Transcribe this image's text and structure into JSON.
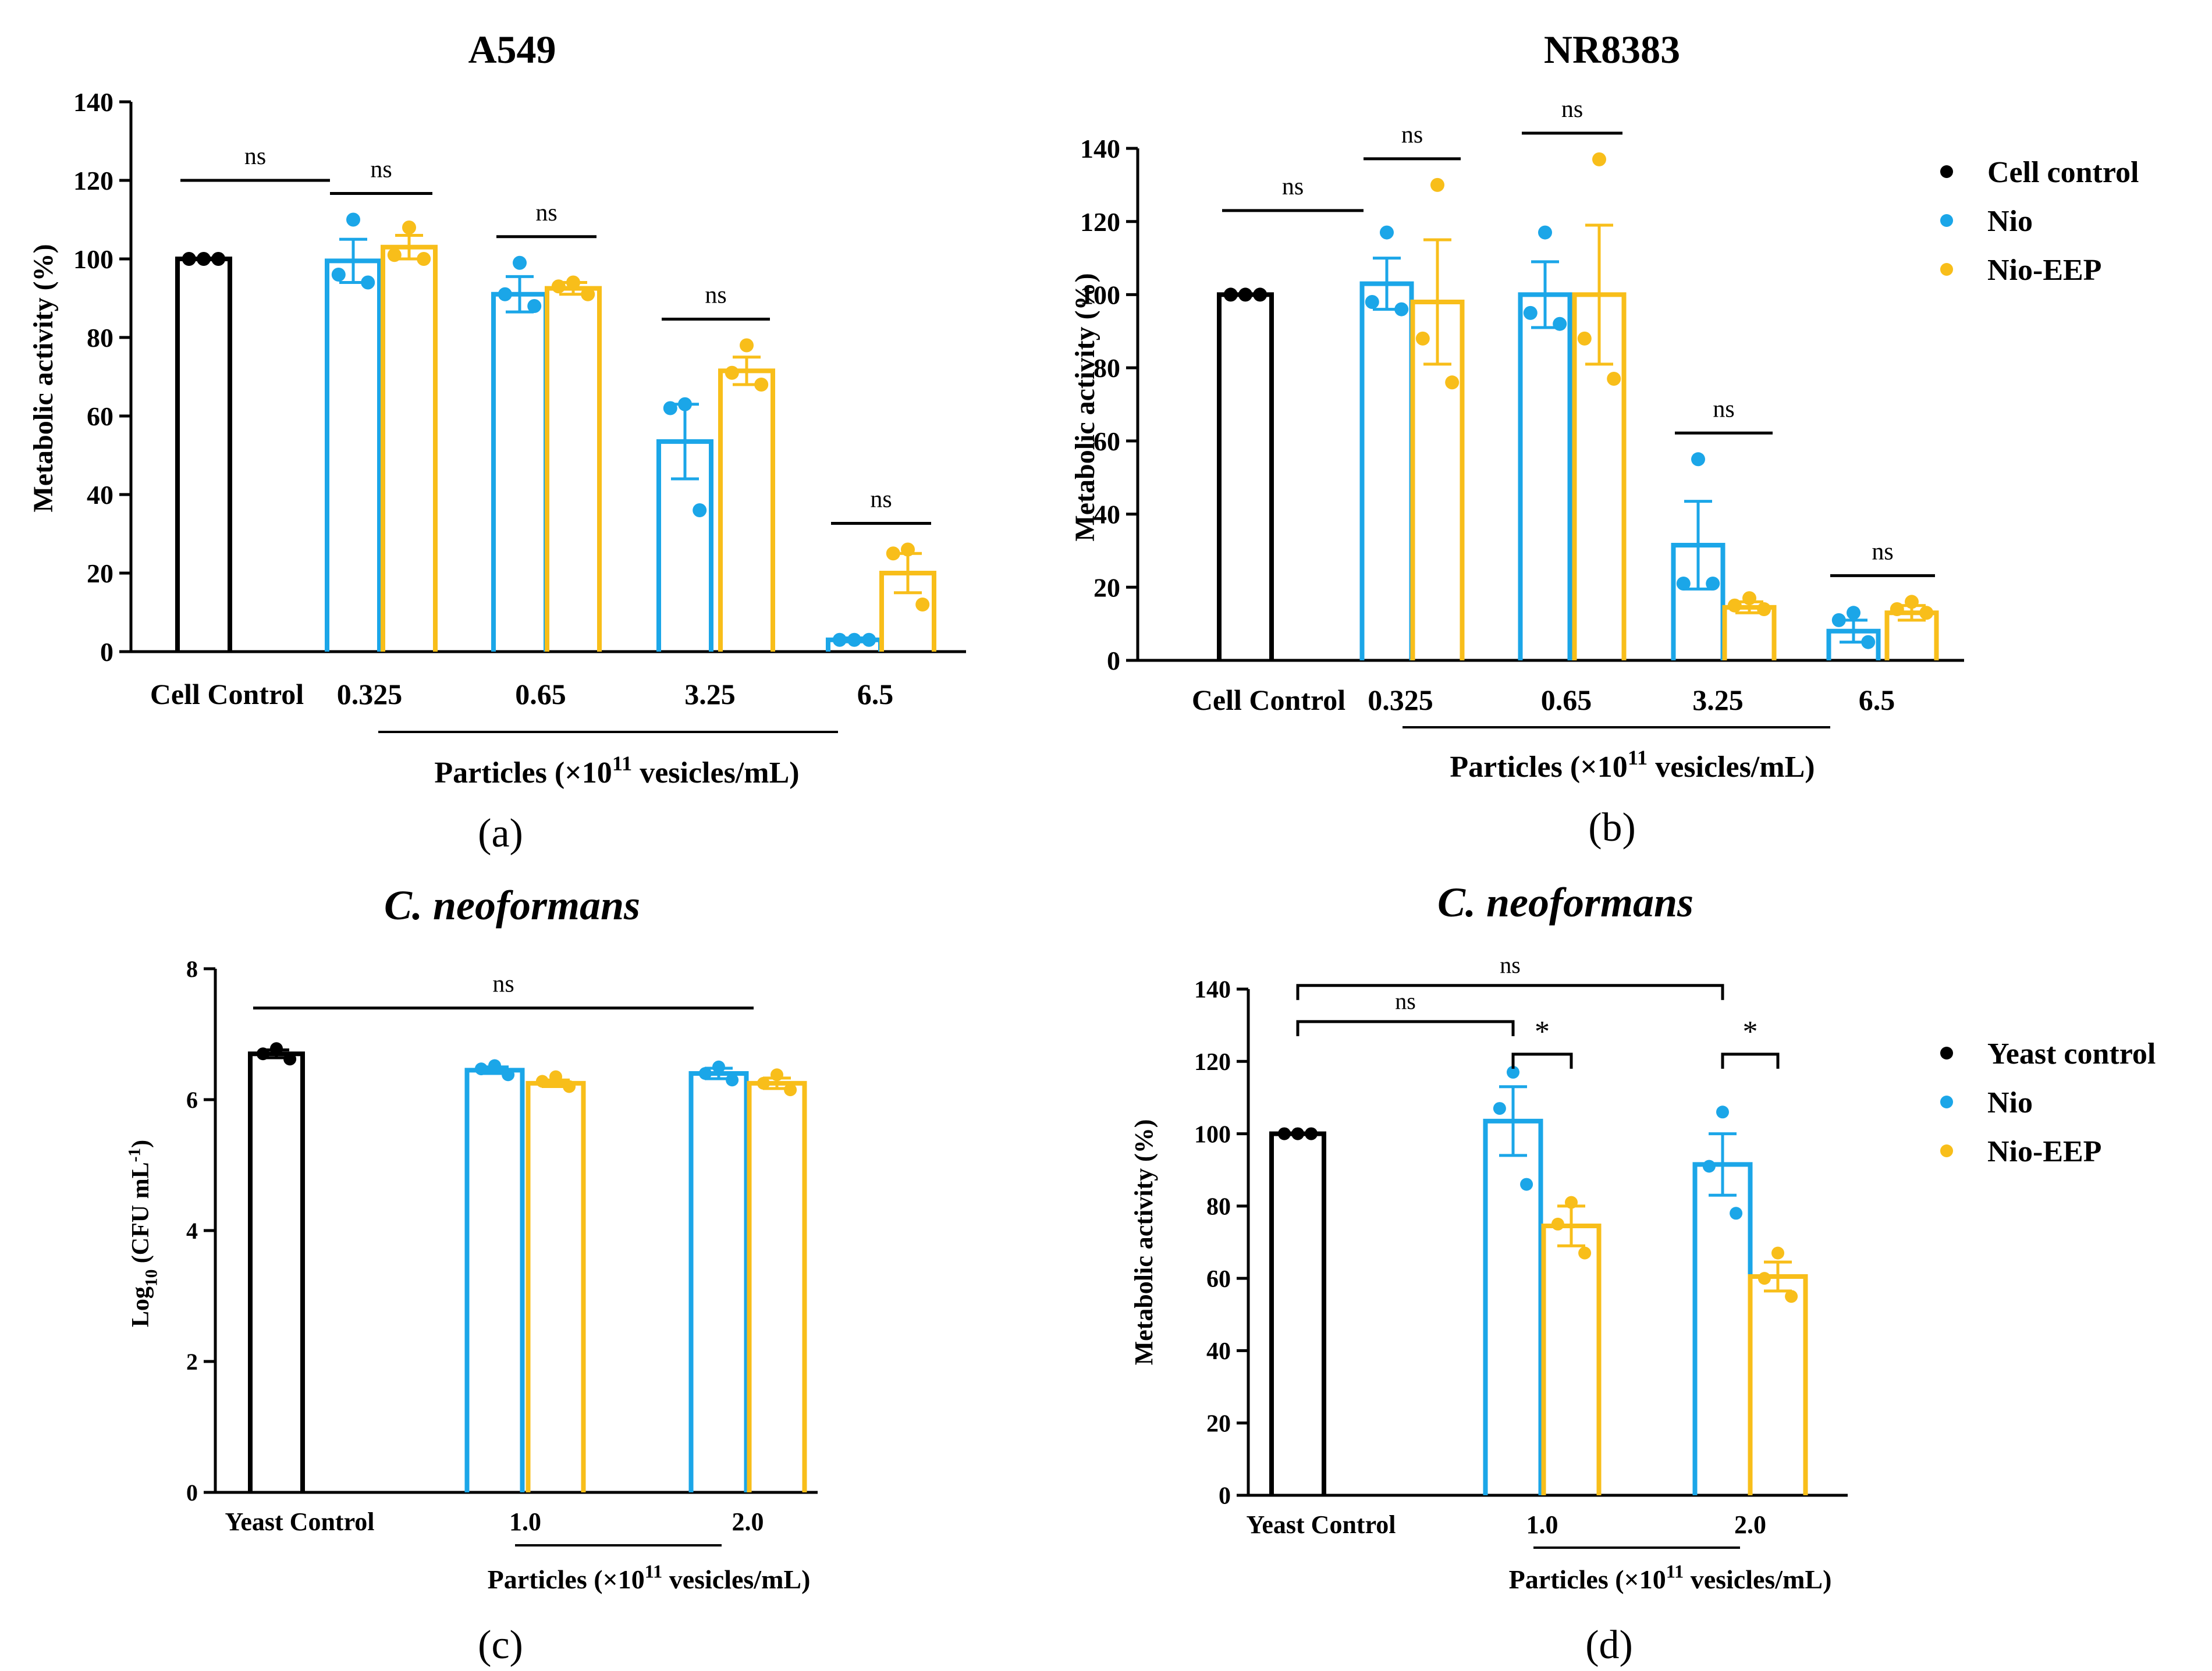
{
  "colors": {
    "control": "#000000",
    "nio": "#1BA6E8",
    "nio_eep": "#F8BE1A",
    "axis": "#000000"
  },
  "legends": {
    "cell": [
      {
        "label": "Cell control",
        "color": "#000000"
      },
      {
        "label": "Nio",
        "color": "#1BA6E8"
      },
      {
        "label": "Nio-EEP",
        "color": "#F8BE1A"
      }
    ],
    "yeast": [
      {
        "label": "Yeast control",
        "color": "#000000"
      },
      {
        "label": "Nio",
        "color": "#1BA6E8"
      },
      {
        "label": "Nio-EEP",
        "color": "#F8BE1A"
      }
    ]
  },
  "chart_data": [
    {
      "id": "a",
      "panel_label": "(a)",
      "type": "bar",
      "title": "A549",
      "ylabel": "Metabolic activity (%)",
      "ylim": [
        0,
        140
      ],
      "yticks": [
        "0",
        "20",
        "40",
        "60",
        "80",
        "100",
        "120",
        "140"
      ],
      "control_label": "Cell Control",
      "categories": [
        "0.325",
        "0.65",
        "3.25",
        "6.5"
      ],
      "xlabel_main": "Particles (×10",
      "xlabel_sup": "11",
      "xlabel_tail": " vesicles/mL)",
      "control": {
        "name": "Cell control",
        "mean": 100,
        "err": 0,
        "points": [
          100,
          100,
          100
        ]
      },
      "series": [
        {
          "name": "Nio",
          "values": [
            99.5,
            91,
            53.5,
            3
          ],
          "errors": [
            5.5,
            4.5,
            9.5,
            0.5
          ],
          "points": [
            [
              110,
              96,
              94
            ],
            [
              99,
              91,
              88
            ],
            [
              63,
              62,
              36
            ],
            [
              3,
              3,
              3
            ]
          ]
        },
        {
          "name": "Nio-EEP",
          "values": [
            103,
            92.5,
            71.5,
            20
          ],
          "errors": [
            3,
            1.5,
            3.5,
            5
          ],
          "points": [
            [
              108,
              101,
              100
            ],
            [
              94,
              93,
              91
            ],
            [
              78,
              71,
              68
            ],
            [
              26,
              25,
              12
            ]
          ]
        }
      ],
      "annotations": [
        {
          "text": "ns",
          "type": "bar",
          "from": "control",
          "to": "g0-nio"
        },
        {
          "text": "ns",
          "type": "pair",
          "group": 0
        },
        {
          "text": "ns",
          "type": "pair",
          "group": 1
        },
        {
          "text": "ns",
          "type": "pair",
          "group": 2
        },
        {
          "text": "ns",
          "type": "pair",
          "group": 3
        }
      ]
    },
    {
      "id": "b",
      "panel_label": "(b)",
      "type": "bar",
      "title": "NR8383",
      "ylabel": "Metabolic activity (%)",
      "ylim": [
        0,
        140
      ],
      "yticks": [
        "0",
        "20",
        "40",
        "60",
        "80",
        "100",
        "120",
        "140"
      ],
      "control_label": "Cell Control",
      "categories": [
        "0.325",
        "0.65",
        "3.25",
        "6.5"
      ],
      "xlabel_main": "Particles (×10",
      "xlabel_sup": "11",
      "xlabel_tail": " vesicles/mL)",
      "control": {
        "name": "Cell control",
        "mean": 100,
        "err": 0,
        "points": [
          100,
          100,
          100
        ]
      },
      "series": [
        {
          "name": "Nio",
          "values": [
            103,
            100,
            31.5,
            8
          ],
          "errors": [
            7,
            9,
            12,
            3
          ],
          "points": [
            [
              117,
              98,
              96
            ],
            [
              117,
              95,
              92
            ],
            [
              55,
              21,
              21
            ],
            [
              13,
              11,
              5
            ]
          ]
        },
        {
          "name": "Nio-EEP",
          "values": [
            98,
            100,
            14.5,
            13
          ],
          "errors": [
            17,
            19,
            1.5,
            2
          ],
          "points": [
            [
              130,
              88,
              76
            ],
            [
              137,
              88,
              77
            ],
            [
              17,
              15,
              14
            ],
            [
              16,
              14,
              13
            ]
          ]
        }
      ],
      "annotations": [
        {
          "text": "ns",
          "type": "bar",
          "from": "control",
          "to": "g0-nio"
        },
        {
          "text": "ns",
          "type": "pair",
          "group": 0
        },
        {
          "text": "ns",
          "type": "pair",
          "group": 1
        },
        {
          "text": "ns",
          "type": "pair",
          "group": 2
        },
        {
          "text": "ns",
          "type": "pair",
          "group": 3
        }
      ]
    },
    {
      "id": "c",
      "panel_label": "(c)",
      "type": "bar",
      "title": "C. neoformans",
      "ylabel_main": "Log",
      "ylabel_sub": "10",
      "ylabel_mid": " (CFU mL",
      "ylabel_sup": "-1",
      "ylabel_tail": ")",
      "ylim": [
        0,
        8
      ],
      "yticks": [
        "0",
        "2",
        "4",
        "6",
        "8"
      ],
      "control_label": "Yeast Control",
      "categories": [
        "1.0",
        "2.0"
      ],
      "xlabel_main": "Particles (×10",
      "xlabel_sup": "11",
      "xlabel_tail": " vesicles/mL)",
      "control": {
        "name": "Yeast control",
        "mean": 6.7,
        "err": 0.06,
        "points": [
          6.78,
          6.7,
          6.62
        ]
      },
      "series": [
        {
          "name": "Nio",
          "values": [
            6.45,
            6.4
          ],
          "errors": [
            0.05,
            0.08
          ],
          "points": [
            [
              6.52,
              6.47,
              6.38
            ],
            [
              6.5,
              6.4,
              6.3
            ]
          ]
        },
        {
          "name": "Nio-EEP",
          "values": [
            6.25,
            6.25
          ],
          "errors": [
            0.05,
            0.08
          ],
          "points": [
            [
              6.35,
              6.28,
              6.2
            ],
            [
              6.38,
              6.25,
              6.15
            ]
          ]
        }
      ],
      "annotations": [
        {
          "text": "ns",
          "type": "bar",
          "from": "control",
          "to": "g1-eep"
        }
      ]
    },
    {
      "id": "d",
      "panel_label": "(d)",
      "type": "bar",
      "title": "C. neoformans",
      "ylabel": "Metabolic activity (%)",
      "ylim": [
        0,
        140
      ],
      "yticks": [
        "0",
        "20",
        "40",
        "60",
        "80",
        "100",
        "120",
        "140"
      ],
      "control_label": "Yeast Control",
      "categories": [
        "1.0",
        "2.0"
      ],
      "xlabel_main": "Particles (×10",
      "xlabel_sup": "11",
      "xlabel_tail": " vesicles/mL)",
      "control": {
        "name": "Yeast control",
        "mean": 100,
        "err": 0,
        "points": [
          100,
          100,
          100
        ]
      },
      "series": [
        {
          "name": "Nio",
          "values": [
            103.5,
            91.5
          ],
          "errors": [
            9.5,
            8.5
          ],
          "points": [
            [
              117,
              107,
              86
            ],
            [
              106,
              91,
              78
            ]
          ]
        },
        {
          "name": "Nio-EEP",
          "values": [
            74.5,
            60.5
          ],
          "errors": [
            5.5,
            4
          ],
          "points": [
            [
              81,
              75,
              67
            ],
            [
              67,
              60,
              55
            ]
          ]
        }
      ],
      "annotations": [
        {
          "text": "ns",
          "type": "bracket",
          "from": "control",
          "to": "g0-nio",
          "level": 1
        },
        {
          "text": "ns",
          "type": "bracket",
          "from": "control",
          "to": "g1-nio",
          "level": 2
        },
        {
          "text": "*",
          "type": "bracket",
          "from": "g0-nio",
          "to": "g0-eep",
          "level": 0
        },
        {
          "text": "*",
          "type": "bracket",
          "from": "g1-nio",
          "to": "g1-eep",
          "level": 0
        }
      ]
    }
  ]
}
